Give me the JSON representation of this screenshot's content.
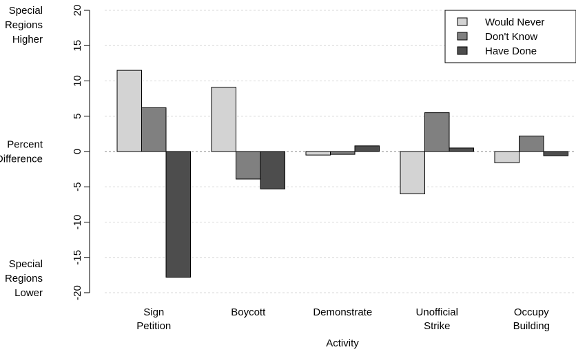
{
  "chart_data": {
    "type": "bar",
    "categories": [
      [
        "Sign",
        "Petition"
      ],
      [
        "Boycott"
      ],
      [
        "Demonstrate"
      ],
      [
        "Unofficial",
        "Strike"
      ],
      [
        "Occupy",
        "Building"
      ]
    ],
    "series": [
      {
        "name": "Would Never",
        "color": "#d3d3d3",
        "values": [
          11.5,
          9.1,
          -0.5,
          -6.0,
          -1.6
        ]
      },
      {
        "name": "Don't Know",
        "color": "#808080",
        "values": [
          6.2,
          -3.9,
          -0.4,
          5.5,
          2.2
        ]
      },
      {
        "name": "Have Done",
        "color": "#4d4d4d",
        "values": [
          -17.8,
          -5.3,
          0.8,
          0.5,
          -0.6
        ]
      }
    ],
    "xlabel": "Activity",
    "ylabel_top": [
      "Special",
      "Regions",
      "Higher"
    ],
    "ylabel_mid": [
      "Percent",
      "Difference"
    ],
    "ylabel_bottom": [
      "Special",
      "Regions",
      "Lower"
    ],
    "ylim": [
      -20,
      20
    ],
    "yticks": [
      20,
      15,
      10,
      5,
      0,
      -5,
      -10,
      -15,
      -20
    ],
    "grid": true,
    "legend_position": "top-right"
  }
}
